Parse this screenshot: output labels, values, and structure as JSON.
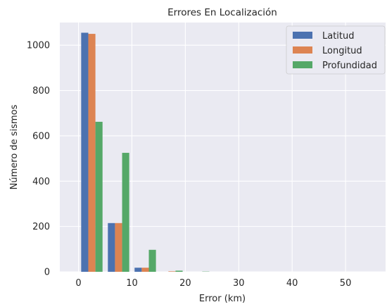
{
  "chart_data": {
    "type": "bar",
    "title": "Errores En Localización",
    "xlabel": "Error (km)",
    "ylabel": "Número de sismos",
    "xlim": [
      -3.5,
      57.5
    ],
    "ylim": [
      0,
      1100
    ],
    "x_ticks": [
      0,
      10,
      20,
      30,
      40,
      50
    ],
    "y_ticks": [
      0,
      200,
      400,
      600,
      800,
      1000
    ],
    "bin_edges": [
      0,
      5,
      10,
      15,
      20,
      25,
      30,
      35,
      40,
      45,
      50,
      55
    ],
    "grid": true,
    "legend_position": "upper right",
    "series": [
      {
        "name": "Latitud",
        "color": "#4c72b0",
        "values": [
          1055,
          215,
          18,
          0,
          0,
          0,
          0,
          0,
          0,
          0,
          0
        ]
      },
      {
        "name": "Longitud",
        "color": "#dd8452",
        "values": [
          1050,
          215,
          18,
          2,
          0,
          0,
          0,
          0,
          0,
          0,
          0
        ]
      },
      {
        "name": "Profundidad",
        "color": "#55a868",
        "values": [
          662,
          525,
          97,
          5,
          1,
          0,
          0,
          0,
          0,
          0,
          0
        ]
      }
    ]
  }
}
